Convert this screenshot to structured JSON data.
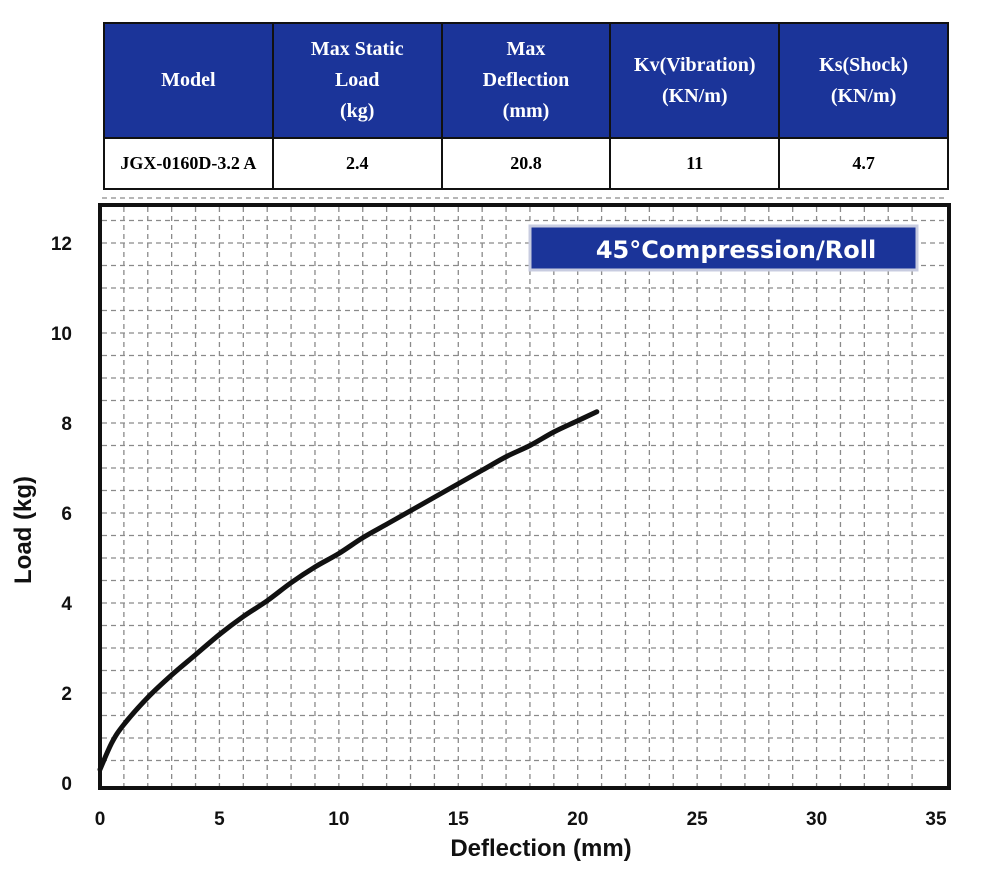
{
  "spec_table": {
    "headers": [
      [
        "Model"
      ],
      [
        "Max Static",
        "Load",
        "(kg)"
      ],
      [
        "Max",
        "Deflection",
        "(mm)"
      ],
      [
        "Kv(Vibration)",
        "(KN/m)"
      ],
      [
        "Ks(Shock)",
        "(KN/m)"
      ]
    ],
    "row": [
      "JGX-0160D-3.2 A",
      "2.4",
      "20.8",
      "11",
      "4.7"
    ],
    "header_color": "#1b3499"
  },
  "chart_data": {
    "type": "line",
    "title": "45°Compression/Roll",
    "xlabel": "Deflection (mm)",
    "ylabel": "Load (kg)",
    "xlim": [
      0,
      35
    ],
    "ylim": [
      0,
      13
    ],
    "xticks": [
      0,
      5,
      10,
      15,
      20,
      25,
      30,
      35
    ],
    "yticks": [
      0,
      2,
      4,
      6,
      8,
      10,
      12
    ],
    "grid": "dashed",
    "series": [
      {
        "x": [
          0,
          0.5,
          1,
          2,
          3,
          4,
          5,
          6,
          7,
          8,
          9,
          10,
          11,
          12,
          13,
          14,
          15,
          16,
          17,
          18,
          19,
          20,
          20.8
        ],
        "y": [
          0.3,
          0.9,
          1.3,
          1.9,
          2.4,
          2.85,
          3.3,
          3.7,
          4.05,
          4.45,
          4.8,
          5.1,
          5.45,
          5.75,
          6.05,
          6.35,
          6.65,
          6.95,
          7.25,
          7.5,
          7.8,
          8.05,
          8.25
        ]
      }
    ],
    "colors": {
      "line": "#111111",
      "title_bg": "#1b3499"
    }
  }
}
